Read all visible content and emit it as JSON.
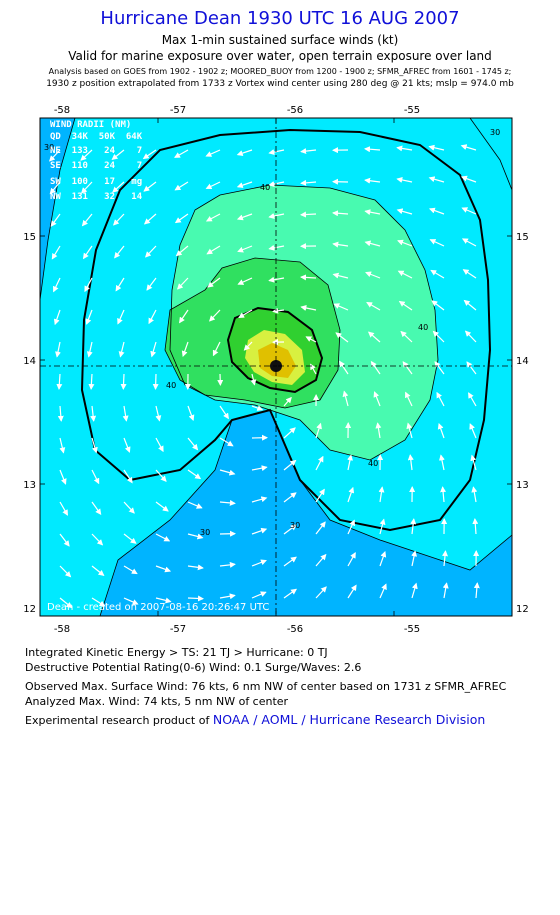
{
  "header": {
    "title": "Hurricane Dean 1930 UTC 16 AUG 2007",
    "subtitle": "Max 1-min sustained surface winds (kt)",
    "validity": "Valid for marine exposure over water, open terrain exposure over land",
    "analysis_basis": "Analysis based on  GOES from 1902 - 1902 z;  MOORED_BUOY from 1200 - 1900 z;  SFMR_AFREC from 1601 - 1745 z;",
    "position_note": "1930 z position extrapolated from 1733 z Vortex wind center using 280 deg @ 21 kts; mslp = 974.0 mb"
  },
  "map": {
    "lon_ticks": [
      "-58",
      "-57",
      "-56",
      "-55"
    ],
    "lat_ticks": [
      "15",
      "14",
      "13",
      "12"
    ],
    "contour_labels": [
      "30",
      "30",
      "40",
      "40",
      "40",
      "40",
      "30",
      "30"
    ],
    "credit": "Dean - created on 2007-08-16 20:26:47 UTC",
    "center": {
      "lon": -56.16,
      "lat": 13.93
    },
    "colors": {
      "lt30": "#00b4ff",
      "30to40": "#00eaff",
      "40to50": "#48fab0",
      "50to60": "#30e060",
      "60to64": "#30d030",
      "hurricane": "#d8f040",
      "core": "#e0c000"
    }
  },
  "wind_radii": {
    "title": "WIND RADII (NM)",
    "header": "QD  34K  50K  64K",
    "rows": [
      "NE  133   24    7",
      "SE  110   24    7",
      "SW  100   17   mg",
      "NW  131   32   14"
    ]
  },
  "footer": {
    "ike": "Integrated Kinetic Energy > TS: 21 TJ   > Hurricane: 0 TJ",
    "dpr": "Destructive Potential Rating(0-6)   Wind: 0.1 Surge/Waves: 2.6",
    "observed": "Observed Max. Surface Wind: 76 kts, 6 nm NW of center based on 1731 z SFMR_AFREC",
    "analyzed": "Analyzed Max. Wind: 74 kts, 5 nm NW of center",
    "product_prefix": "Experimental research product of",
    "product_link": "NOAA / AOML / Hurricane Research Division"
  }
}
